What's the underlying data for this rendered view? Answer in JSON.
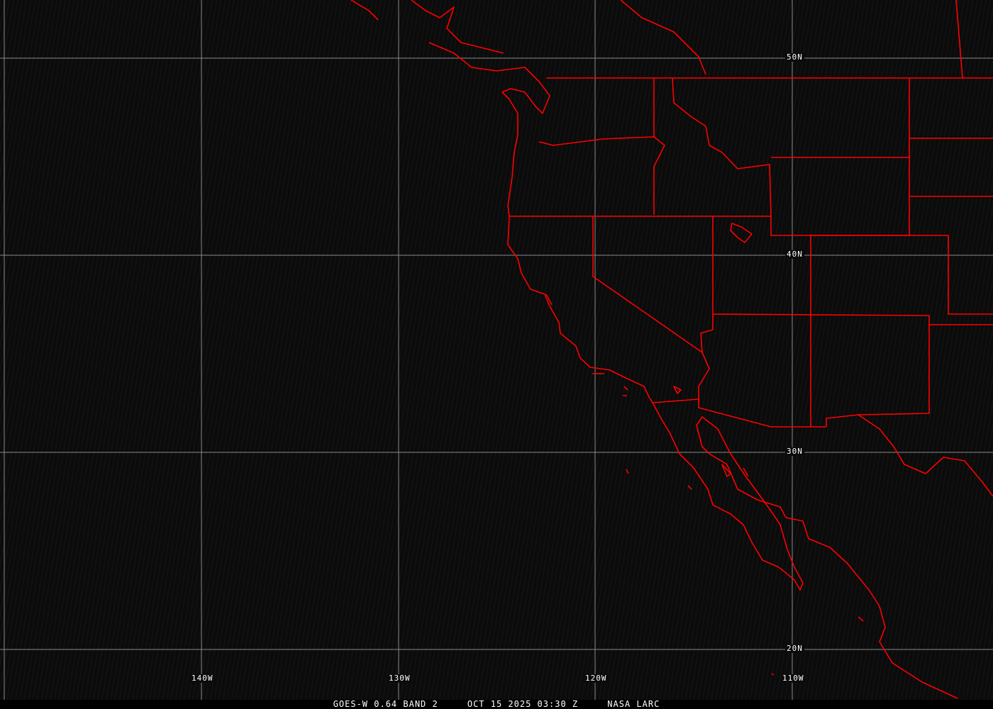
{
  "caption": {
    "satellite": "GOES-W 0.64 BAND 2",
    "datetime": "OCT 15 2025 03:30 Z",
    "source": "NASA LARC"
  },
  "grid": {
    "latitude_labels": [
      "50N",
      "40N",
      "30N",
      "20N"
    ],
    "longitude_labels": [
      "140W",
      "130W",
      "120W",
      "110W"
    ]
  },
  "colors": {
    "background": "#0b0b0b",
    "boundaries": "#ff0000",
    "grid": "#8a8a8a",
    "text": "#ffffff"
  }
}
